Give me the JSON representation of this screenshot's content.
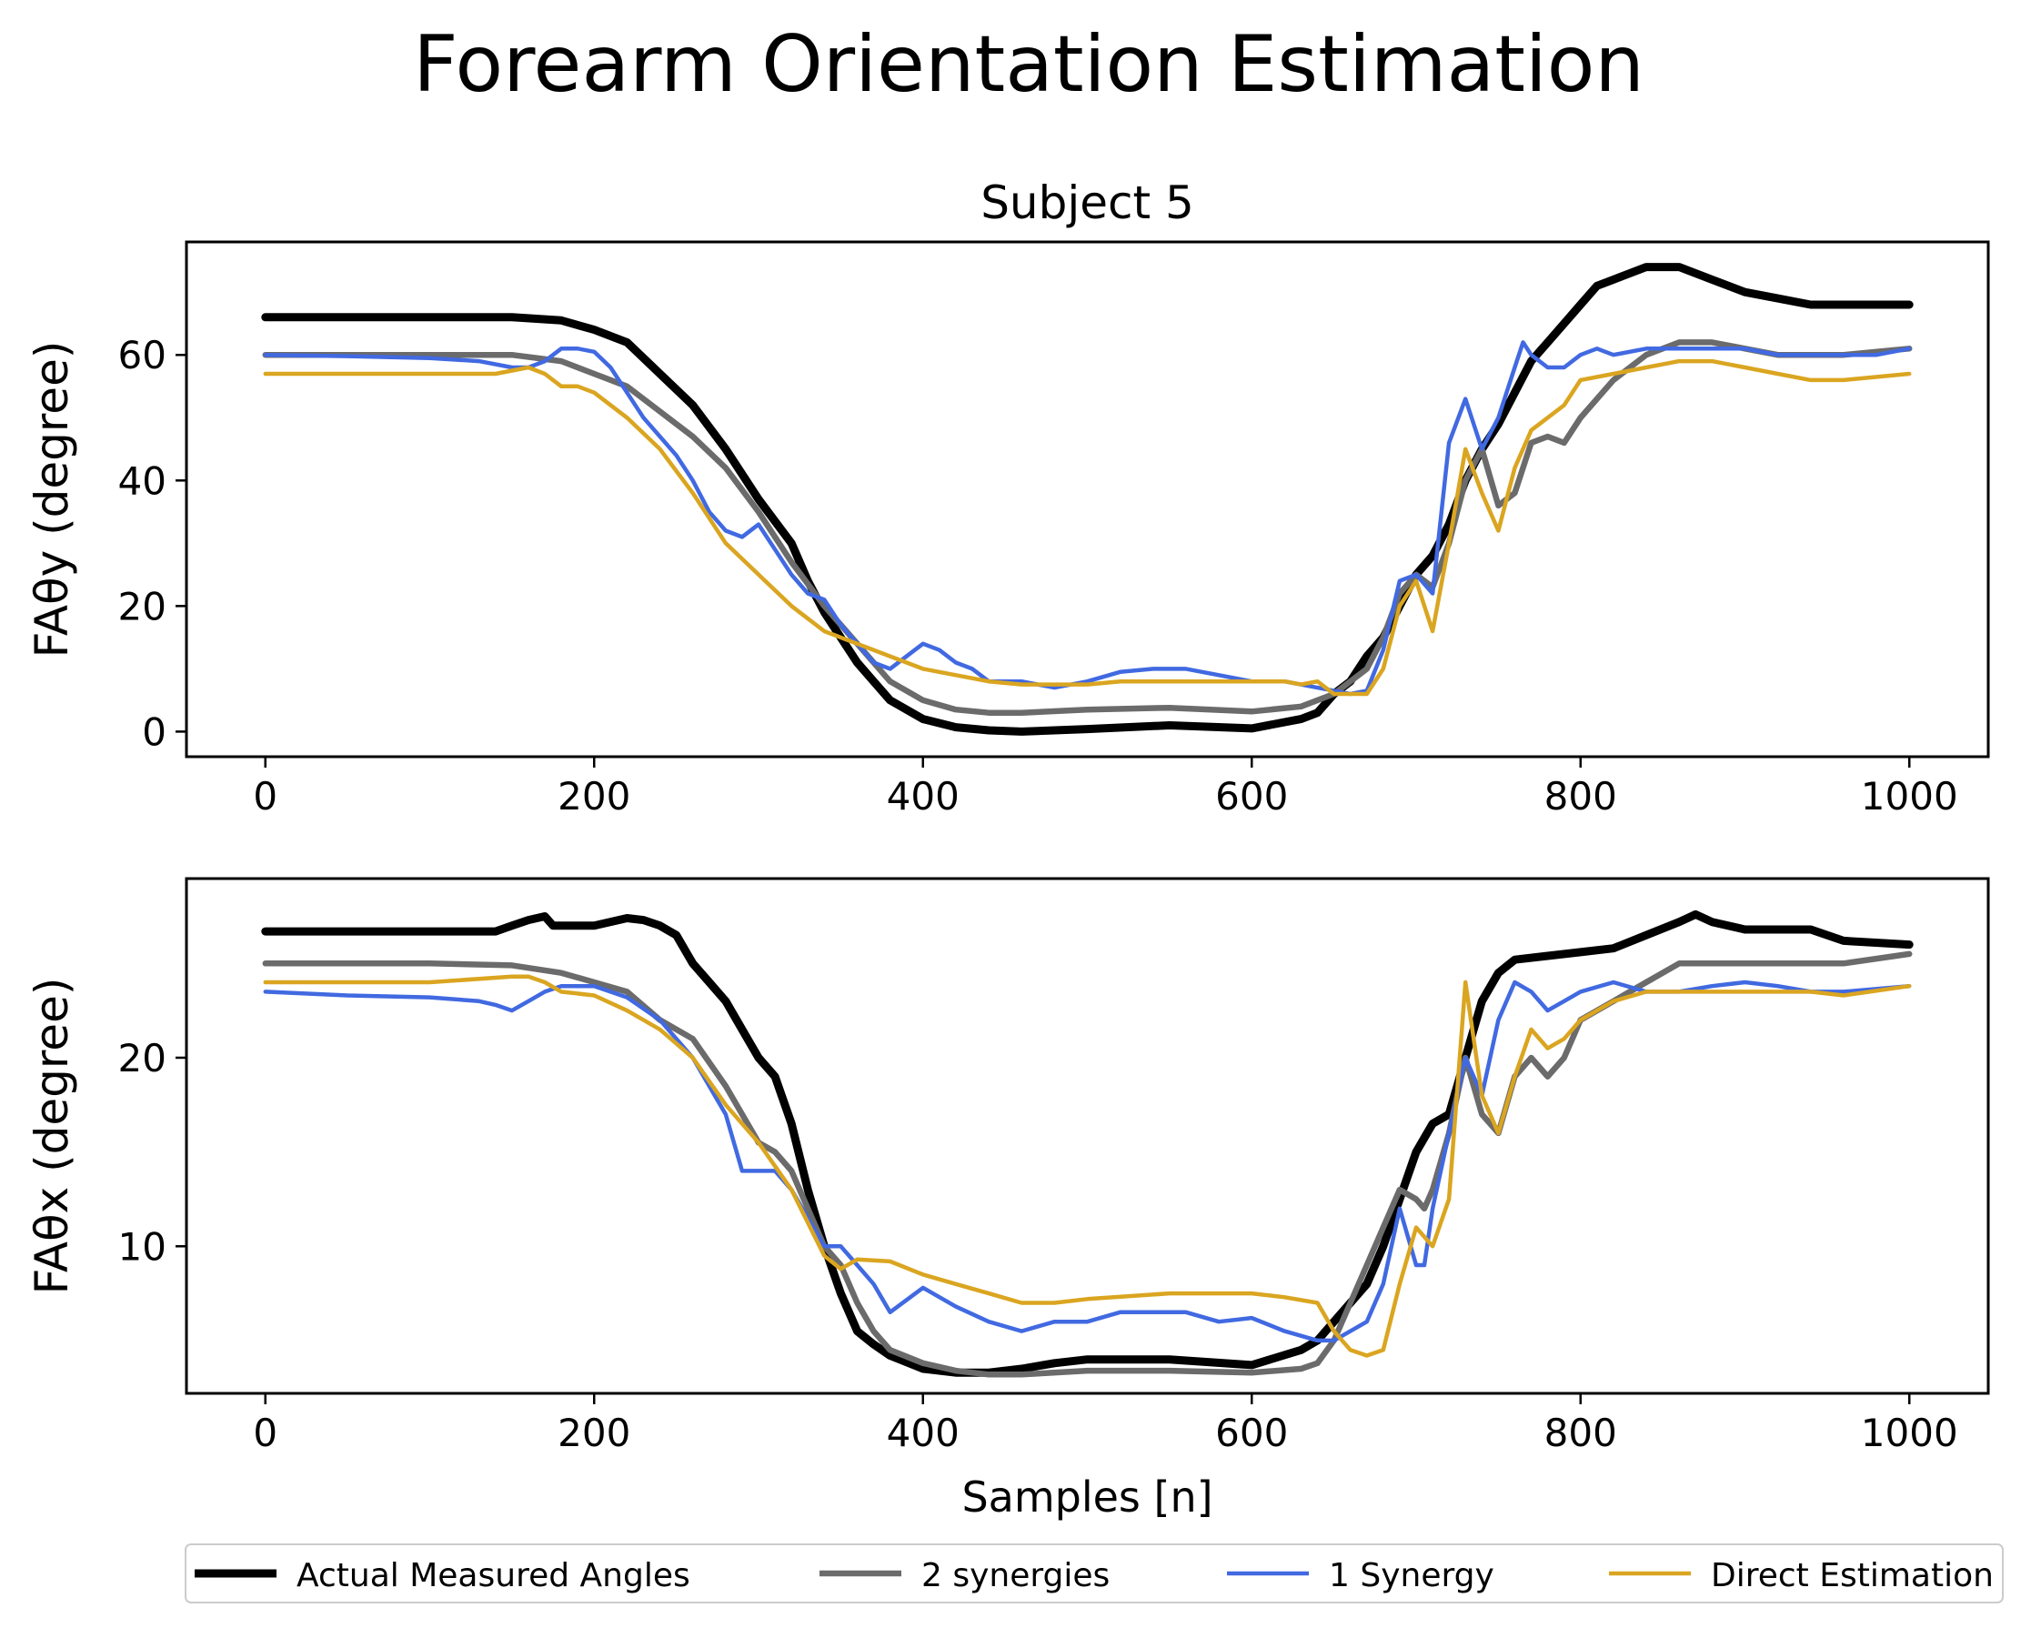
{
  "figure": {
    "title": "Forearm Orientation Estimation"
  },
  "series_styles": [
    {
      "name": "Actual Measured Angles",
      "color": "#000000"
    },
    {
      "name": "2 synergies",
      "color": "#6b6b6b"
    },
    {
      "name": "1 Synergy",
      "color": "#4169e1"
    },
    {
      "name": "Direct Estimation",
      "color": "#daa520"
    }
  ],
  "chart_data": [
    {
      "type": "line",
      "title": "Subject 5",
      "xlabel": "",
      "ylabel": "FAθy (degree)",
      "xlim": [
        -48,
        1048
      ],
      "ylim": [
        -4,
        78
      ],
      "xticks": [
        0,
        200,
        400,
        600,
        800,
        1000
      ],
      "yticks": [
        0,
        20,
        40,
        60
      ],
      "series": [
        {
          "name": "Actual Measured Angles",
          "x": [
            0,
            50,
            100,
            150,
            180,
            200,
            220,
            240,
            260,
            280,
            300,
            320,
            330,
            340,
            350,
            360,
            370,
            380,
            400,
            420,
            440,
            460,
            500,
            550,
            600,
            630,
            640,
            650,
            660,
            670,
            680,
            690,
            700,
            710,
            720,
            730,
            740,
            750,
            760,
            770,
            780,
            790,
            800,
            810,
            820,
            840,
            860,
            880,
            900,
            920,
            940,
            960,
            1000
          ],
          "y": [
            66,
            66,
            66,
            66,
            65.5,
            64,
            62,
            57,
            52,
            45,
            37,
            30,
            24,
            19,
            15,
            11,
            8,
            5,
            2,
            0.7,
            0.2,
            0,
            0.4,
            1,
            0.5,
            2,
            3,
            6,
            8,
            12,
            15,
            20,
            25,
            28,
            33,
            40,
            45,
            49,
            54,
            59,
            62,
            65,
            68,
            71,
            72,
            74,
            74,
            72,
            70,
            69,
            68,
            68,
            68
          ]
        },
        {
          "name": "2 synergies",
          "x": [
            0,
            100,
            150,
            180,
            200,
            220,
            240,
            260,
            280,
            300,
            320,
            340,
            360,
            380,
            400,
            420,
            440,
            460,
            500,
            550,
            600,
            630,
            650,
            670,
            680,
            690,
            700,
            710,
            720,
            730,
            740,
            750,
            760,
            770,
            780,
            790,
            800,
            820,
            840,
            860,
            880,
            900,
            920,
            940,
            960,
            1000
          ],
          "y": [
            60,
            60,
            60,
            59,
            57,
            55,
            51,
            47,
            42,
            35,
            27,
            20,
            14,
            8,
            5,
            3.5,
            3,
            3,
            3.5,
            3.8,
            3.2,
            4,
            6,
            10,
            15,
            22,
            25,
            23,
            30,
            40,
            45,
            36,
            38,
            46,
            47,
            46,
            50,
            56,
            60,
            62,
            62,
            61,
            60,
            60,
            60,
            61
          ]
        },
        {
          "name": "1 Synergy",
          "x": [
            0,
            50,
            100,
            130,
            150,
            160,
            170,
            180,
            190,
            200,
            210,
            220,
            230,
            240,
            250,
            260,
            270,
            280,
            290,
            300,
            310,
            320,
            330,
            340,
            350,
            360,
            370,
            380,
            390,
            400,
            410,
            420,
            430,
            440,
            460,
            480,
            500,
            520,
            540,
            560,
            580,
            600,
            620,
            640,
            660,
            670,
            680,
            690,
            700,
            710,
            720,
            730,
            740,
            750,
            760,
            765,
            770,
            780,
            790,
            800,
            810,
            820,
            840,
            860,
            880,
            900,
            920,
            940,
            960,
            980,
            1000
          ],
          "y": [
            60,
            59.8,
            59.5,
            59,
            58,
            58,
            59,
            61,
            61,
            60.5,
            58,
            54,
            50,
            47,
            44,
            40,
            35,
            32,
            31,
            33,
            29,
            25,
            22,
            21,
            17,
            14,
            11,
            10,
            12,
            14,
            13,
            11,
            10,
            8,
            8,
            7,
            8,
            9.5,
            10,
            10,
            9,
            8,
            8,
            7,
            6,
            6.5,
            13,
            24,
            25,
            22,
            46,
            53,
            45,
            50,
            58,
            62,
            60,
            58,
            58,
            60,
            61,
            60,
            61,
            61,
            61,
            61,
            60,
            60,
            60,
            60,
            61
          ]
        },
        {
          "name": "Direct Estimation",
          "x": [
            0,
            50,
            100,
            130,
            140,
            150,
            160,
            170,
            180,
            190,
            200,
            220,
            240,
            260,
            280,
            300,
            320,
            340,
            360,
            380,
            400,
            420,
            440,
            460,
            480,
            500,
            520,
            540,
            560,
            580,
            600,
            620,
            630,
            640,
            650,
            660,
            670,
            680,
            690,
            700,
            710,
            720,
            730,
            740,
            750,
            760,
            770,
            780,
            790,
            800,
            820,
            840,
            860,
            880,
            900,
            920,
            940,
            960,
            1000
          ],
          "y": [
            57,
            57,
            57,
            57,
            57,
            57.5,
            58,
            57,
            55,
            55,
            54,
            50,
            45,
            38,
            30,
            25,
            20,
            16,
            14,
            12,
            10,
            9,
            8,
            7.5,
            7.5,
            7.5,
            8,
            8,
            8,
            8,
            8,
            8,
            7.5,
            8,
            6,
            6,
            6,
            10,
            20,
            24,
            16,
            30,
            45,
            38,
            32,
            42,
            48,
            50,
            52,
            56,
            57,
            58,
            59,
            59,
            58,
            57,
            56,
            56,
            57
          ]
        }
      ]
    },
    {
      "type": "line",
      "title": "",
      "xlabel": "Samples [n]",
      "ylabel": "FAθx (degree)",
      "xlim": [
        -48,
        1048
      ],
      "ylim": [
        2.2,
        29.5
      ],
      "xticks": [
        0,
        200,
        400,
        600,
        800,
        1000
      ],
      "yticks": [
        10,
        20
      ],
      "series": [
        {
          "name": "Actual Measured Angles",
          "x": [
            0,
            50,
            100,
            140,
            150,
            160,
            170,
            175,
            180,
            200,
            220,
            230,
            240,
            250,
            260,
            270,
            280,
            290,
            300,
            310,
            320,
            330,
            340,
            350,
            360,
            370,
            380,
            400,
            420,
            440,
            460,
            480,
            500,
            550,
            600,
            630,
            640,
            650,
            660,
            670,
            680,
            690,
            700,
            710,
            720,
            730,
            740,
            750,
            760,
            780,
            800,
            820,
            840,
            860,
            870,
            880,
            900,
            940,
            960,
            1000
          ],
          "y": [
            26.7,
            26.7,
            26.7,
            26.7,
            27,
            27.3,
            27.5,
            27,
            27,
            27,
            27.4,
            27.3,
            27,
            26.5,
            25,
            24,
            23,
            21.5,
            20,
            19,
            16.5,
            13,
            10,
            7.5,
            5.5,
            4.8,
            4.2,
            3.5,
            3.3,
            3.3,
            3.5,
            3.8,
            4,
            4,
            3.7,
            4.5,
            5,
            6,
            7,
            8,
            10,
            12.5,
            15,
            16.5,
            17,
            20,
            23,
            24.5,
            25.2,
            25.4,
            25.6,
            25.8,
            26.5,
            27.2,
            27.6,
            27.2,
            26.8,
            26.8,
            26.2,
            26
          ]
        },
        {
          "name": "2 synergies",
          "x": [
            0,
            100,
            150,
            180,
            200,
            220,
            240,
            260,
            280,
            300,
            310,
            320,
            330,
            340,
            350,
            360,
            370,
            380,
            400,
            420,
            440,
            460,
            500,
            550,
            600,
            630,
            640,
            650,
            660,
            670,
            680,
            690,
            700,
            705,
            710,
            720,
            730,
            740,
            750,
            760,
            770,
            780,
            790,
            800,
            820,
            840,
            860,
            880,
            900,
            940,
            960,
            1000
          ],
          "y": [
            25,
            25,
            24.9,
            24.5,
            24,
            23.5,
            22,
            21,
            18.5,
            15.5,
            15,
            14,
            12,
            10,
            9,
            7,
            5.5,
            4.5,
            3.8,
            3.4,
            3.2,
            3.2,
            3.4,
            3.4,
            3.3,
            3.5,
            3.8,
            5,
            7,
            9,
            11,
            13,
            12.5,
            12,
            13,
            16,
            20,
            17,
            16,
            19,
            20,
            19,
            20,
            22,
            23,
            24,
            25,
            25,
            25,
            25,
            25,
            25.5
          ]
        },
        {
          "name": "1 Synergy",
          "x": [
            0,
            50,
            100,
            130,
            140,
            150,
            160,
            170,
            180,
            200,
            220,
            240,
            260,
            280,
            290,
            300,
            310,
            320,
            330,
            340,
            350,
            360,
            370,
            380,
            400,
            420,
            440,
            460,
            480,
            500,
            520,
            540,
            560,
            580,
            600,
            620,
            640,
            650,
            660,
            670,
            680,
            690,
            700,
            705,
            710,
            720,
            730,
            740,
            750,
            760,
            770,
            780,
            790,
            800,
            820,
            840,
            860,
            880,
            900,
            920,
            940,
            960,
            1000
          ],
          "y": [
            23.5,
            23.3,
            23.2,
            23,
            22.8,
            22.5,
            23,
            23.5,
            23.8,
            23.8,
            23.2,
            22,
            20,
            17,
            14,
            14,
            14,
            13,
            11.5,
            10,
            10,
            9,
            8,
            6.5,
            7.8,
            6.8,
            6,
            5.5,
            6,
            6,
            6.5,
            6.5,
            6.5,
            6,
            6.2,
            5.5,
            5,
            5,
            5.5,
            6,
            8,
            12,
            9,
            9,
            12,
            16,
            20,
            18,
            22,
            24,
            23.5,
            22.5,
            23,
            23.5,
            24,
            23.5,
            23.5,
            23.8,
            24,
            23.8,
            23.5,
            23.5,
            23.8
          ]
        },
        {
          "name": "Direct Estimation",
          "x": [
            0,
            100,
            150,
            160,
            170,
            180,
            200,
            220,
            240,
            260,
            280,
            300,
            320,
            340,
            350,
            360,
            380,
            400,
            420,
            440,
            460,
            480,
            500,
            550,
            600,
            620,
            640,
            650,
            660,
            670,
            680,
            690,
            700,
            710,
            720,
            730,
            740,
            750,
            760,
            770,
            780,
            790,
            800,
            820,
            840,
            860,
            880,
            900,
            940,
            960,
            1000
          ],
          "y": [
            24,
            24,
            24.3,
            24.3,
            24,
            23.5,
            23.3,
            22.5,
            21.5,
            20,
            17.5,
            15.5,
            13,
            9.5,
            8.8,
            9.3,
            9.2,
            8.5,
            8,
            7.5,
            7,
            7,
            7.2,
            7.5,
            7.5,
            7.3,
            7,
            5.5,
            4.5,
            4.2,
            4.5,
            8,
            11,
            10,
            12.5,
            24,
            18,
            16,
            19,
            21.5,
            20.5,
            21,
            22,
            23,
            23.5,
            23.5,
            23.5,
            23.5,
            23.5,
            23.3,
            23.8
          ]
        }
      ]
    }
  ]
}
